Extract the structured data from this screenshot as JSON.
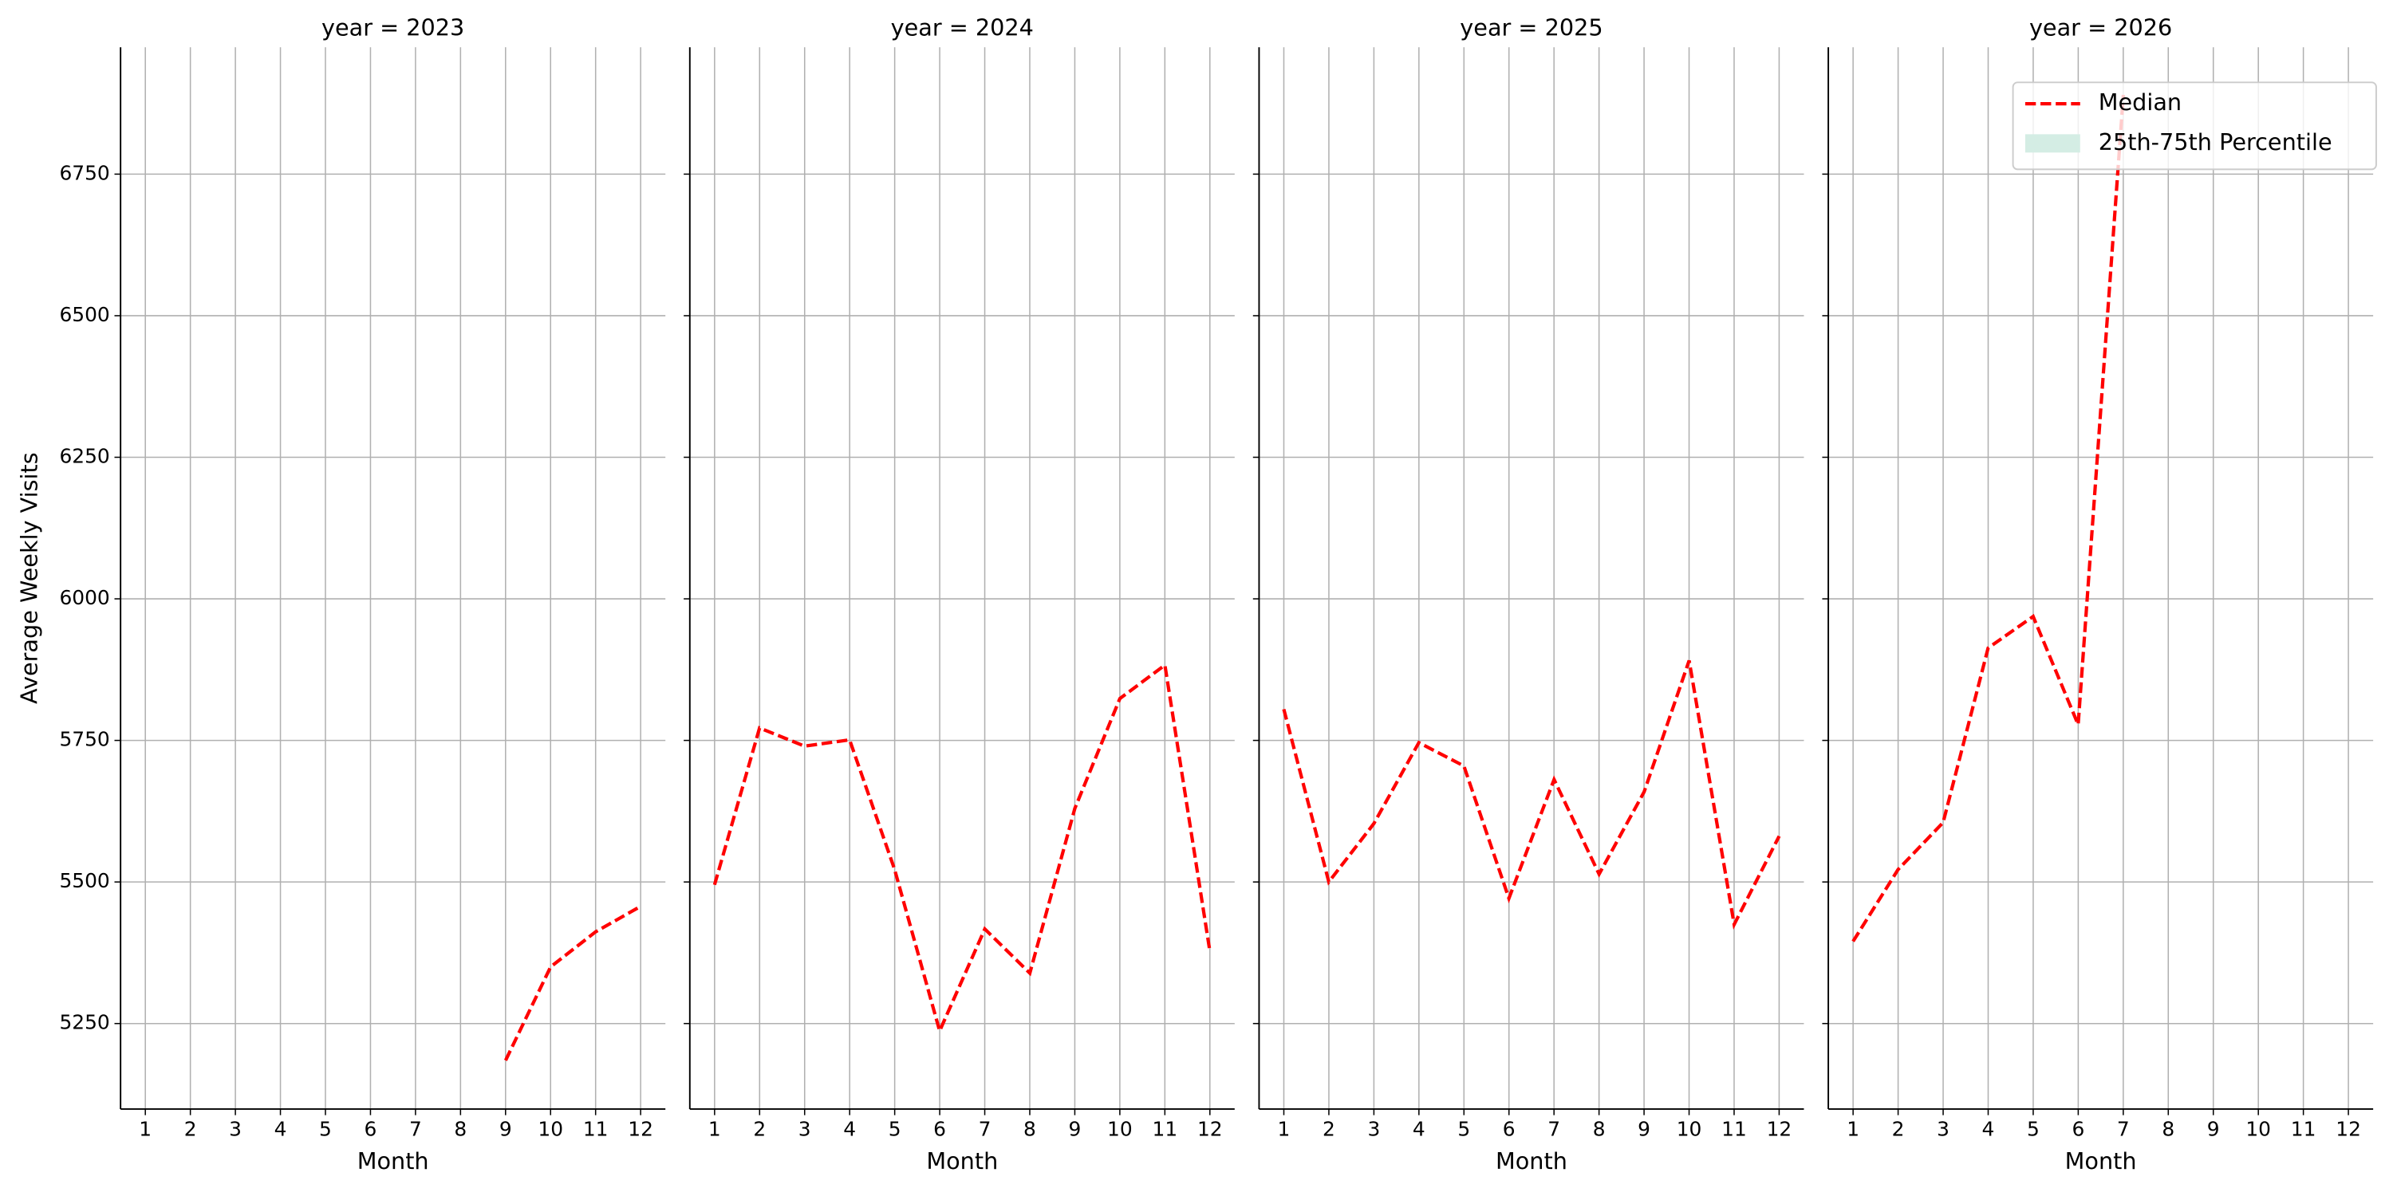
{
  "chart_data": [
    {
      "type": "line",
      "title": "year = 2023",
      "xlabel": "Month",
      "ylabel": "Average Weekly Visits",
      "x": [
        1,
        2,
        3,
        4,
        5,
        6,
        7,
        8,
        9,
        10,
        11,
        12
      ],
      "xlim": [
        0.45,
        12.55
      ],
      "xticks": [
        1,
        2,
        3,
        4,
        5,
        6,
        7,
        8,
        9,
        10,
        11,
        12
      ],
      "ylim": [
        5099,
        6974
      ],
      "yticks": [
        5250,
        5500,
        5750,
        6000,
        6250,
        6500,
        6750
      ],
      "grid": true,
      "series": [
        {
          "name": "Median",
          "color": "#ff0000",
          "values": [
            null,
            null,
            null,
            null,
            null,
            null,
            null,
            null,
            5185,
            5350,
            5412,
            5457
          ]
        }
      ]
    },
    {
      "type": "line",
      "title": "year = 2024",
      "xlabel": "Month",
      "x": [
        1,
        2,
        3,
        4,
        5,
        6,
        7,
        8,
        9,
        10,
        11,
        12
      ],
      "xlim": [
        0.45,
        12.55
      ],
      "xticks": [
        1,
        2,
        3,
        4,
        5,
        6,
        7,
        8,
        9,
        10,
        11,
        12
      ],
      "grid": true,
      "series": [
        {
          "name": "Median",
          "color": "#ff0000",
          "values": [
            5495,
            5772,
            5740,
            5751,
            5522,
            5237,
            5417,
            5339,
            5630,
            5824,
            5883,
            5377
          ]
        }
      ]
    },
    {
      "type": "line",
      "title": "year = 2025",
      "xlabel": "Month",
      "x": [
        1,
        2,
        3,
        4,
        5,
        6,
        7,
        8,
        9,
        10,
        11,
        12
      ],
      "xlim": [
        0.45,
        12.55
      ],
      "xticks": [
        1,
        2,
        3,
        4,
        5,
        6,
        7,
        8,
        9,
        10,
        11,
        12
      ],
      "grid": true,
      "series": [
        {
          "name": "Median",
          "color": "#ff0000",
          "values": [
            5805,
            5500,
            5603,
            5746,
            5705,
            5471,
            5681,
            5514,
            5659,
            5891,
            5425,
            5581
          ]
        }
      ]
    },
    {
      "type": "line",
      "title": "year = 2026",
      "xlabel": "Month",
      "x": [
        1,
        2,
        3,
        4,
        5,
        6,
        7,
        8,
        9,
        10,
        11,
        12
      ],
      "xlim": [
        0.45,
        12.55
      ],
      "xticks": [
        1,
        2,
        3,
        4,
        5,
        6,
        7,
        8,
        9,
        10,
        11,
        12
      ],
      "grid": true,
      "legend": "upper right",
      "series": [
        {
          "name": "Median",
          "color": "#ff0000",
          "values": [
            5395,
            5522,
            5605,
            5913,
            5969,
            5778,
            6890,
            null,
            null,
            null,
            null,
            null
          ]
        },
        {
          "name": "25th-75th Percentile",
          "color": "#d4ede4"
        }
      ]
    }
  ]
}
